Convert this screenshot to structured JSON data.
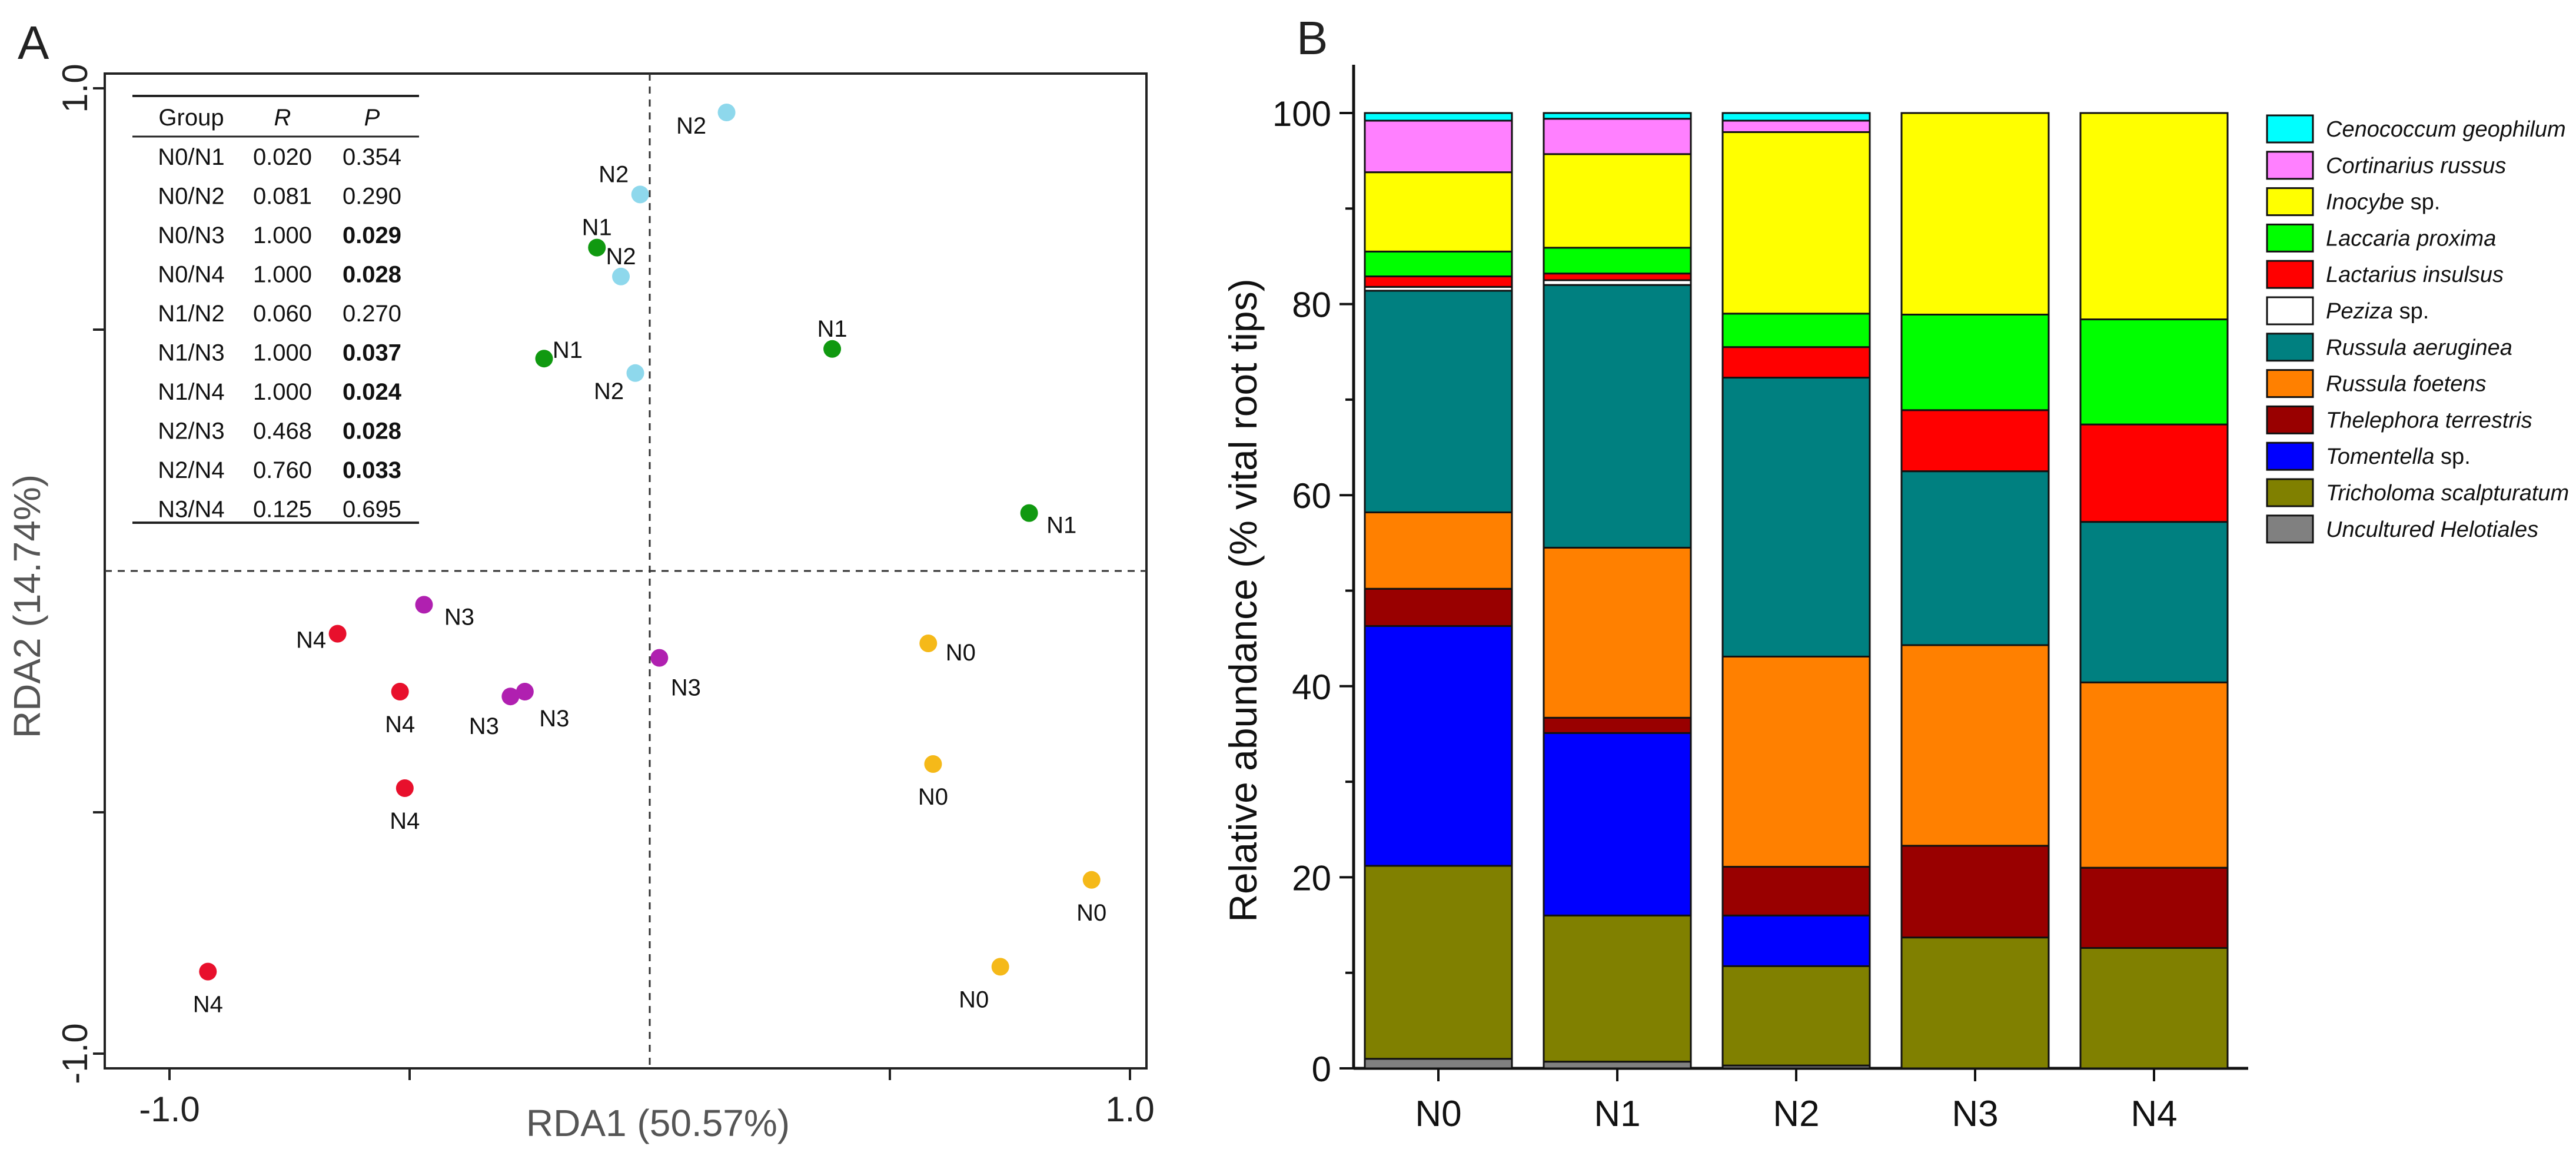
{
  "figure": {
    "panel_a_label": "A",
    "panel_b_label": "B"
  },
  "chart_data": [
    {
      "type": "scatter",
      "panel": "A",
      "xlabel": "RDA1 (50.57%)",
      "ylabel": "RDA2 (14.74%)",
      "xlim": [
        -1.0,
        1.0
      ],
      "ylim": [
        -1.0,
        1.0
      ],
      "x_ticks": [
        -1.0,
        1.0
      ],
      "x_tick_labels": [
        "-1.0",
        "1.0"
      ],
      "y_ticks": [
        -1.0,
        1.0
      ],
      "y_tick_labels": [
        "-1.0",
        "1.0"
      ],
      "reference_lines": {
        "x": 0,
        "y": 0,
        "style": "dashed"
      },
      "colors": {
        "N0": "#f5b919",
        "N1": "#109910",
        "N2": "#8ed8ec",
        "N3": "#b020b0",
        "N4": "#e8102c"
      },
      "points": [
        {
          "group": "N2",
          "x": 0.16,
          "y": 0.95
        },
        {
          "group": "N2",
          "x": -0.02,
          "y": 0.78
        },
        {
          "group": "N2",
          "x": -0.06,
          "y": 0.61
        },
        {
          "group": "N2",
          "x": -0.03,
          "y": 0.41
        },
        {
          "group": "N1",
          "x": -0.11,
          "y": 0.67
        },
        {
          "group": "N1",
          "x": -0.22,
          "y": 0.44
        },
        {
          "group": "N1",
          "x": 0.38,
          "y": 0.46
        },
        {
          "group": "N1",
          "x": 0.79,
          "y": 0.12
        },
        {
          "group": "N3",
          "x": -0.47,
          "y": -0.07
        },
        {
          "group": "N3",
          "x": 0.02,
          "y": -0.18
        },
        {
          "group": "N3",
          "x": -0.29,
          "y": -0.26
        },
        {
          "group": "N3",
          "x": -0.26,
          "y": -0.25
        },
        {
          "group": "N4",
          "x": -0.65,
          "y": -0.13
        },
        {
          "group": "N4",
          "x": -0.52,
          "y": -0.25
        },
        {
          "group": "N4",
          "x": -0.51,
          "y": -0.45
        },
        {
          "group": "N4",
          "x": -0.92,
          "y": -0.83
        },
        {
          "group": "N0",
          "x": 0.58,
          "y": -0.15
        },
        {
          "group": "N0",
          "x": 0.59,
          "y": -0.4
        },
        {
          "group": "N0",
          "x": 0.92,
          "y": -0.64
        },
        {
          "group": "N0",
          "x": 0.73,
          "y": -0.82
        }
      ],
      "stats_table": {
        "headers": [
          "Group",
          "R",
          "P"
        ],
        "rows": [
          {
            "group": "N0/N1",
            "r": "0.020",
            "p": "0.354",
            "bold": false
          },
          {
            "group": "N0/N2",
            "r": "0.081",
            "p": "0.290",
            "bold": false
          },
          {
            "group": "N0/N3",
            "r": "1.000",
            "p": "0.029",
            "bold": true
          },
          {
            "group": "N0/N4",
            "r": "1.000",
            "p": "0.028",
            "bold": true
          },
          {
            "group": "N1/N2",
            "r": "0.060",
            "p": "0.270",
            "bold": false
          },
          {
            "group": "N1/N3",
            "r": "1.000",
            "p": "0.037",
            "bold": true
          },
          {
            "group": "N1/N4",
            "r": "1.000",
            "p": "0.024",
            "bold": true
          },
          {
            "group": "N2/N3",
            "r": "0.468",
            "p": "0.028",
            "bold": true
          },
          {
            "group": "N2/N4",
            "r": "0.760",
            "p": "0.033",
            "bold": true
          },
          {
            "group": "N3/N4",
            "r": "0.125",
            "p": "0.695",
            "bold": false
          }
        ]
      }
    },
    {
      "type": "bar",
      "stacked": true,
      "panel": "B",
      "ylabel": "Relative abundance (% vital root tips)",
      "ylim": [
        0,
        100
      ],
      "y_ticks": [
        0,
        20,
        40,
        60,
        80,
        100
      ],
      "categories": [
        "N0",
        "N1",
        "N2",
        "N3",
        "N4"
      ],
      "legend_position": "right",
      "series": [
        {
          "name": "Uncultured Helotiales",
          "italic": "Uncultured Helotiales",
          "suffix": "",
          "color": "#808080",
          "values": [
            1.0,
            0.7,
            0.3,
            0,
            0
          ]
        },
        {
          "name": "Tricholoma scalpturatum",
          "italic": "Tricholoma scalpturatum",
          "suffix": "",
          "color": "#808000",
          "values": [
            20.2,
            15.3,
            10.4,
            13.7,
            12.6
          ]
        },
        {
          "name": "Tomentella sp.",
          "italic": "Tomentella",
          "suffix": " sp.",
          "color": "#0000ff",
          "values": [
            25.1,
            19.1,
            5.3,
            0,
            0
          ]
        },
        {
          "name": "Thelephora terrestris",
          "italic": "Thelephora terrestris",
          "suffix": "",
          "color": "#990000",
          "values": [
            3.9,
            1.6,
            5.1,
            9.6,
            8.4
          ]
        },
        {
          "name": "Russula foetens",
          "italic": "Russula foetens",
          "suffix": "",
          "color": "#ff8000",
          "values": [
            8.0,
            17.8,
            22.0,
            21.0,
            19.4
          ]
        },
        {
          "name": "Russula aeruginea",
          "italic": "Russula aeruginea",
          "suffix": "",
          "color": "#008080",
          "values": [
            23.2,
            27.5,
            29.2,
            18.2,
            16.8
          ]
        },
        {
          "name": "Peziza sp.",
          "italic": "Peziza",
          "suffix": " sp.",
          "color": "#ffffff",
          "values": [
            0.4,
            0.5,
            0,
            0,
            0
          ]
        },
        {
          "name": "Lactarius insulsus",
          "italic": "Lactarius insulsus",
          "suffix": "",
          "color": "#ff0000",
          "values": [
            1.1,
            0.7,
            3.2,
            6.4,
            10.2
          ]
        },
        {
          "name": "Laccaria proxima",
          "italic": "Laccaria proxima",
          "suffix": "",
          "color": "#00ff00",
          "values": [
            2.6,
            2.7,
            3.5,
            10.0,
            11.0
          ]
        },
        {
          "name": "Inocybe sp.",
          "italic": "Inocybe",
          "suffix": " sp.",
          "color": "#ffff00",
          "values": [
            8.3,
            9.8,
            19.0,
            21.1,
            21.6
          ]
        },
        {
          "name": "Cortinarius russus",
          "italic": "Cortinarius russus",
          "suffix": "",
          "color": "#ff80ff",
          "values": [
            5.4,
            3.7,
            1.2,
            0,
            0
          ]
        },
        {
          "name": "Cenococcum geophilum",
          "italic": "Cenococcum geophilum",
          "suffix": "",
          "color": "#00ffff",
          "values": [
            0.8,
            0.6,
            0.8,
            0,
            0
          ]
        }
      ],
      "legend_order": [
        "Cenococcum geophilum",
        "Cortinarius russus",
        "Inocybe sp.",
        "Laccaria proxima",
        "Lactarius insulsus",
        "Peziza sp.",
        "Russula aeruginea",
        "Russula foetens",
        "Thelephora terrestris",
        "Tomentella sp.",
        "Tricholoma scalpturatum",
        "Uncultured Helotiales"
      ]
    }
  ]
}
